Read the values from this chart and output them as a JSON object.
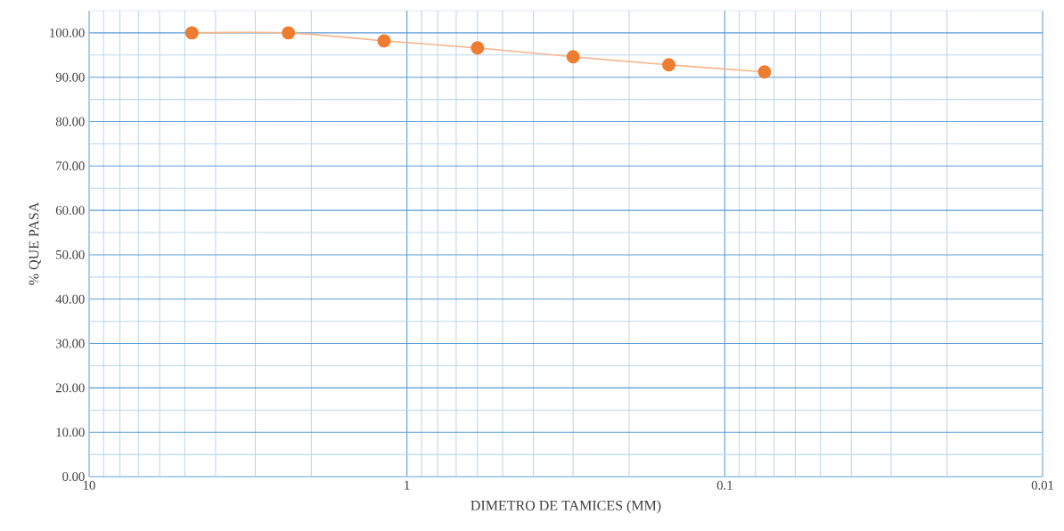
{
  "chart_data": {
    "type": "line",
    "xlabel": "DIMETRO DE TAMICES (MM)",
    "ylabel": "% QUE PASA",
    "x": [
      4.75,
      2.36,
      1.18,
      0.6,
      0.3,
      0.15,
      0.075
    ],
    "series": [
      {
        "color": "#ed7d31",
        "values": [
          100,
          100,
          98.2,
          96.6,
          94.6,
          92.8,
          91.2
        ]
      }
    ],
    "log": "x",
    "xlim": [
      10,
      0.01
    ],
    "xticks": [
      10,
      {
        "value": 9,
        "label": null
      },
      {
        "value": 8,
        "label": null
      },
      {
        "value": 7,
        "label": null
      },
      {
        "value": 6,
        "label": null
      },
      {
        "value": 5,
        "label": null
      },
      {
        "value": 4,
        "label": null
      },
      {
        "value": 3,
        "label": null
      },
      {
        "value": 2,
        "label": null
      },
      1,
      {
        "value": 0.9,
        "label": null
      },
      {
        "value": 0.8,
        "label": null
      },
      {
        "value": 0.7,
        "label": null
      },
      {
        "value": 0.6,
        "label": null
      },
      {
        "value": 0.5,
        "label": null
      },
      {
        "value": 0.4,
        "label": null
      },
      {
        "value": 0.3,
        "label": null
      },
      {
        "value": 0.2,
        "label": null
      },
      0.1,
      {
        "value": 0.09,
        "label": null
      },
      {
        "value": 0.08,
        "label": null
      },
      {
        "value": 0.07,
        "label": null
      },
      {
        "value": 0.06,
        "label": null
      },
      {
        "value": 0.05,
        "label": null
      },
      {
        "value": 0.04,
        "label": null
      },
      {
        "value": 0.03,
        "label": null
      },
      {
        "value": 0.02,
        "label": null
      },
      0.01
    ],
    "ylim": [
      0,
      105
    ],
    "yticks": [
      {
        "value": 0,
        "label": "0.00"
      },
      {
        "value": 5,
        "label": null
      },
      {
        "value": 10,
        "label": "10.00"
      },
      {
        "value": 15,
        "label": null
      },
      {
        "value": 20,
        "label": "20.00"
      },
      {
        "value": 25,
        "label": null
      },
      {
        "value": 30,
        "label": "30.00"
      },
      {
        "value": 35,
        "label": null
      },
      {
        "value": 40,
        "label": "40.00"
      },
      {
        "value": 45,
        "label": null
      },
      {
        "value": 50,
        "label": "50.00"
      },
      {
        "value": 55,
        "label": null
      },
      {
        "value": 60,
        "label": "60.00"
      },
      {
        "value": 65,
        "label": null
      },
      {
        "value": 70,
        "label": "70.00"
      },
      {
        "value": 75,
        "label": null
      },
      {
        "value": 80,
        "label": "80.00"
      },
      {
        "value": 85,
        "label": null
      },
      {
        "value": 90,
        "label": "90.00"
      },
      {
        "value": 95,
        "label": null
      },
      {
        "value": 100,
        "label": "100.00"
      }
    ],
    "grid": true,
    "marker": "circle",
    "line_style": "solid"
  }
}
